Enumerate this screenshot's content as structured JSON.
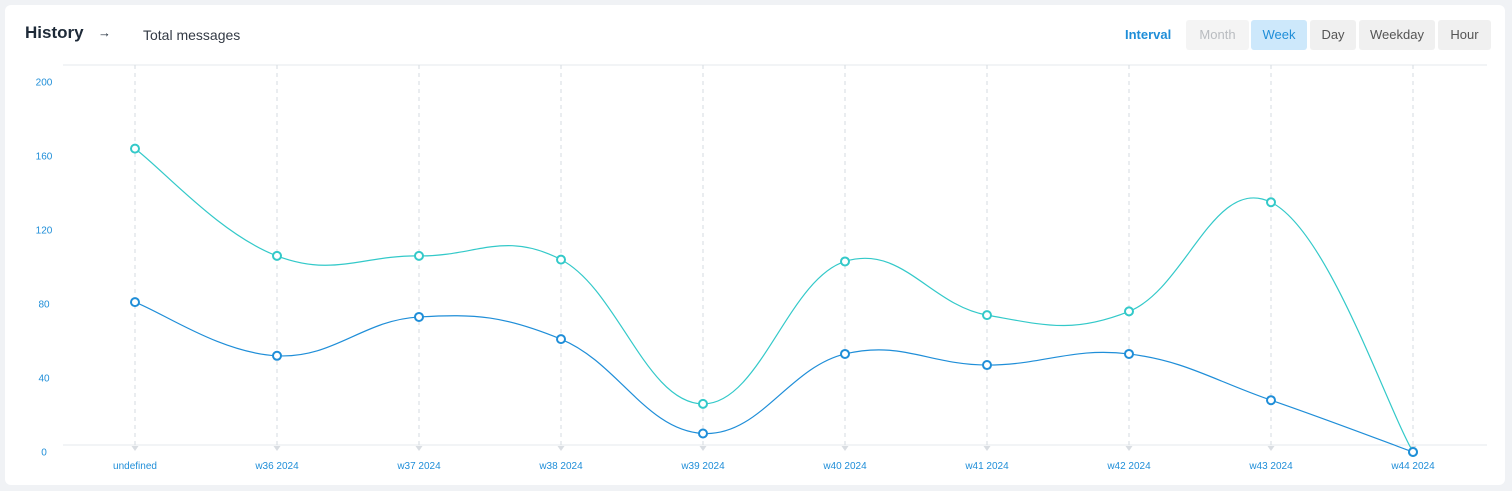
{
  "header": {
    "title": "History",
    "arrow": "→",
    "subtitle": "Total messages",
    "interval_label": "Interval",
    "buttons": [
      {
        "label": "Month",
        "state": "disabled"
      },
      {
        "label": "Week",
        "state": "active"
      },
      {
        "label": "Day",
        "state": "normal"
      },
      {
        "label": "Weekday",
        "state": "normal"
      },
      {
        "label": "Hour",
        "state": "normal"
      }
    ]
  },
  "colors": {
    "accent": "#1f8ed8",
    "series_dark": "#1f8ed8",
    "series_teal": "#33c9c9",
    "grid": "#d6dbe0"
  },
  "chart_data": {
    "type": "line",
    "categories": [
      "undefined",
      "w36 2024",
      "w37 2024",
      "w38 2024",
      "w39 2024",
      "w40 2024",
      "w41 2024",
      "w42 2024",
      "w43 2024",
      "w44 2024"
    ],
    "series": [
      {
        "values": [
          164,
          106,
          106,
          104,
          26,
          103,
          74,
          76,
          135,
          0
        ],
        "color": "#33c9c9"
      },
      {
        "values": [
          81,
          52,
          73,
          61,
          10,
          53,
          47,
          53,
          28,
          0
        ],
        "color": "#1f8ed8"
      }
    ],
    "yticks": [
      0,
      40,
      80,
      120,
      160,
      200
    ],
    "ylim": [
      0,
      200
    ],
    "grid": "vertical-dashed",
    "curve": "smooth"
  }
}
